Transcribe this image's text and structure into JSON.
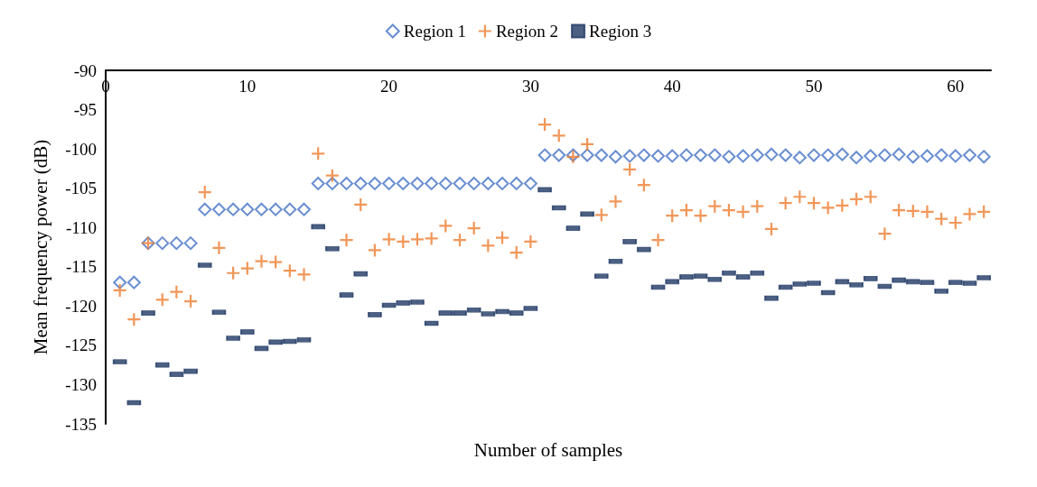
{
  "chart_data": {
    "type": "scatter",
    "xlabel": "Number of samples",
    "ylabel": "Mean frequency power (dB)",
    "xlim": [
      0,
      62.5
    ],
    "xticks": [
      0,
      10,
      20,
      30,
      40,
      50,
      60
    ],
    "ylim": [
      -135,
      -90
    ],
    "yticks": [
      -135,
      -130,
      -125,
      -120,
      -115,
      -110,
      -105,
      -100,
      -95,
      -90
    ],
    "grid": false,
    "legend": "top",
    "x": [
      1,
      2,
      3,
      4,
      5,
      6,
      7,
      8,
      9,
      10,
      11,
      12,
      13,
      14,
      15,
      16,
      17,
      18,
      19,
      20,
      21,
      22,
      23,
      24,
      25,
      26,
      27,
      28,
      29,
      30,
      31,
      32,
      33,
      34,
      35,
      36,
      37,
      38,
      39,
      40,
      41,
      42,
      43,
      44,
      45,
      46,
      47,
      48,
      49,
      50,
      51,
      52,
      53,
      54,
      55,
      56,
      57,
      58,
      59,
      60,
      61,
      62
    ],
    "series": [
      {
        "name": "Region 1",
        "color": "#4472c4",
        "marker": "diamond",
        "values": [
          -117,
          -117,
          -112,
          -112,
          -112,
          -112,
          -107.7,
          -107.7,
          -107.7,
          -107.7,
          -107.7,
          -107.7,
          -107.7,
          -107.7,
          -104.4,
          -104.4,
          -104.4,
          -104.4,
          -104.4,
          -104.4,
          -104.4,
          -104.4,
          -104.4,
          -104.4,
          -104.4,
          -104.4,
          -104.4,
          -104.4,
          -104.4,
          -104.4,
          -100.8,
          -100.8,
          -100.8,
          -100.8,
          -100.8,
          -101,
          -100.9,
          -100.8,
          -100.9,
          -100.9,
          -100.8,
          -100.8,
          -100.8,
          -101,
          -100.9,
          -100.8,
          -100.7,
          -100.8,
          -101.1,
          -100.8,
          -100.8,
          -100.7,
          -101.1,
          -100.9,
          -100.8,
          -100.7,
          -101,
          -100.9,
          -100.8,
          -100.9,
          -100.8,
          -101
        ]
      },
      {
        "name": "Region 2",
        "color": "#ed7d31",
        "marker": "cross",
        "values": [
          -118,
          -121.7,
          -112,
          -119.2,
          -118.2,
          -119.4,
          -105.5,
          -112.6,
          -115.8,
          -115.2,
          -114.3,
          -114.4,
          -115.5,
          -116,
          -100.6,
          -103.4,
          -111.6,
          -107.1,
          -112.9,
          -111.5,
          -111.8,
          -111.5,
          -111.4,
          -109.8,
          -111.6,
          -110.1,
          -112.3,
          -111.3,
          -113.2,
          -111.8,
          -96.9,
          -98.3,
          -101,
          -99.4,
          -108.4,
          -106.7,
          -102.6,
          -104.6,
          -111.6,
          -108.5,
          -107.8,
          -108.5,
          -107.3,
          -107.8,
          -108,
          -107.3,
          -110.2,
          -106.9,
          -106.1,
          -106.9,
          -107.5,
          -107.2,
          -106.4,
          -106.1,
          -110.8,
          -107.8,
          -107.9,
          -108,
          -108.9,
          -109.4,
          -108.3,
          -108
        ]
      },
      {
        "name": "Region 3",
        "color": "#1f3864",
        "marker": "square",
        "values": [
          -127.1,
          -132.3,
          -120.9,
          -127.5,
          -128.7,
          -128.3,
          -114.8,
          -120.8,
          -124.1,
          -123.3,
          -125.4,
          -124.6,
          -124.5,
          -124.3,
          -109.9,
          -112.7,
          -118.6,
          -115.9,
          -121.1,
          -119.9,
          -119.6,
          -119.5,
          -122.2,
          -120.9,
          -120.9,
          -120.5,
          -121,
          -120.7,
          -120.9,
          -120.3,
          -105.2,
          -107.5,
          -110.1,
          -108.3,
          -116.2,
          -114.3,
          -111.8,
          -112.8,
          -117.6,
          -116.9,
          -116.3,
          -116.2,
          -116.6,
          -115.8,
          -116.3,
          -115.8,
          -119,
          -117.6,
          -117.2,
          -117.1,
          -118.3,
          -116.9,
          -117.3,
          -116.5,
          -117.5,
          -116.7,
          -116.9,
          -117,
          -118.1,
          -117,
          -117.1,
          -116.4
        ]
      }
    ]
  }
}
